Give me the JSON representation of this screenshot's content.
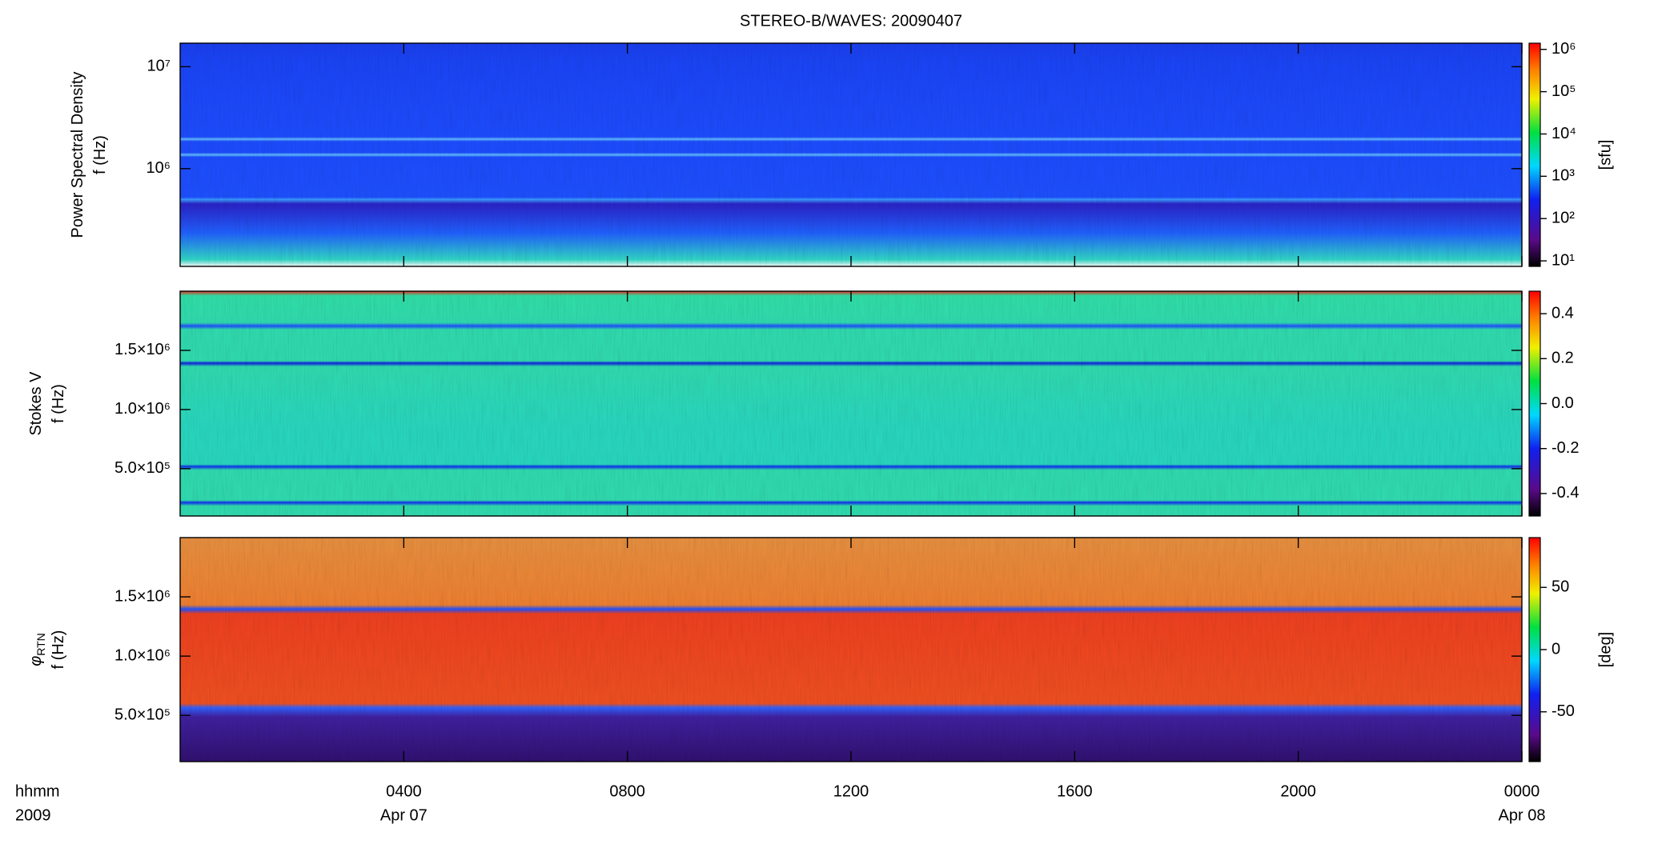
{
  "chart_data": [
    {
      "type": "spectrogram",
      "title": "STEREO-B/WAVES: 20090407",
      "ylabel_lines": [
        {
          "text": "Power Spectral Density"
        },
        {
          "text": "f (Hz)"
        }
      ],
      "ylog": true,
      "ylim": [
        110000,
        17000000
      ],
      "yticks": [
        {
          "value": 1000000,
          "label": "10⁶"
        },
        {
          "value": 10000000,
          "label": "10⁷"
        }
      ],
      "colorbar": {
        "label": "[sfu]",
        "log": true,
        "lim": [
          7.4,
          1400000
        ],
        "ticks": [
          {
            "value": 10,
            "label": "10¹"
          },
          {
            "value": 100,
            "label": "10²"
          },
          {
            "value": 1000,
            "label": "10³"
          },
          {
            "value": 10000,
            "label": "10⁴"
          },
          {
            "value": 100000,
            "label": "10⁵"
          },
          {
            "value": 1000000,
            "label": "10⁶"
          }
        ]
      }
    },
    {
      "type": "spectrogram",
      "ylabel_lines": [
        {
          "text": "Stokes V"
        },
        {
          "text": "f (Hz)"
        }
      ],
      "ylog": false,
      "ylim": [
        100000,
        2000000
      ],
      "yticks": [
        {
          "value": 500000,
          "label": "5.0×10⁵"
        },
        {
          "value": 1000000,
          "label": "1.0×10⁶"
        },
        {
          "value": 1500000,
          "label": "1.5×10⁶"
        }
      ],
      "colorbar": {
        "log": false,
        "lim": [
          -0.5,
          0.5
        ],
        "ticks": [
          -0.4,
          -0.2,
          {
            "value": 0,
            "label": "0.0"
          },
          0.2,
          0.4
        ]
      }
    },
    {
      "type": "spectrogram",
      "ylabel_lines": [
        {
          "text": "φ",
          "sub": "RTN"
        },
        {
          "text": "f (Hz)"
        }
      ],
      "ylog": false,
      "ylim": [
        110000,
        2000000
      ],
      "yticks": [
        {
          "value": 500000,
          "label": "5.0×10⁵"
        },
        {
          "value": 1000000,
          "label": "1.0×10⁶"
        },
        {
          "value": 1500000,
          "label": "1.5×10⁶"
        }
      ],
      "colorbar": {
        "label": "[deg]",
        "log": false,
        "lim": [
          -90,
          90
        ],
        "ticks": [
          -50,
          0,
          50
        ]
      },
      "xlabel_lines": [
        "hhmm",
        "2009"
      ],
      "xlim": [
        0,
        24
      ],
      "xticks": [
        {
          "value": 4,
          "label": "0400"
        },
        {
          "value": 8,
          "label": "0800"
        },
        {
          "value": 12,
          "label": "1200"
        },
        {
          "value": 16,
          "label": "1600"
        },
        {
          "value": 20,
          "label": "2000"
        },
        {
          "value": 24,
          "label": "0000"
        }
      ],
      "date_labels": [
        {
          "value": 4,
          "label": "Apr 07"
        },
        {
          "value": 24,
          "label": "Apr 08"
        }
      ]
    }
  ]
}
